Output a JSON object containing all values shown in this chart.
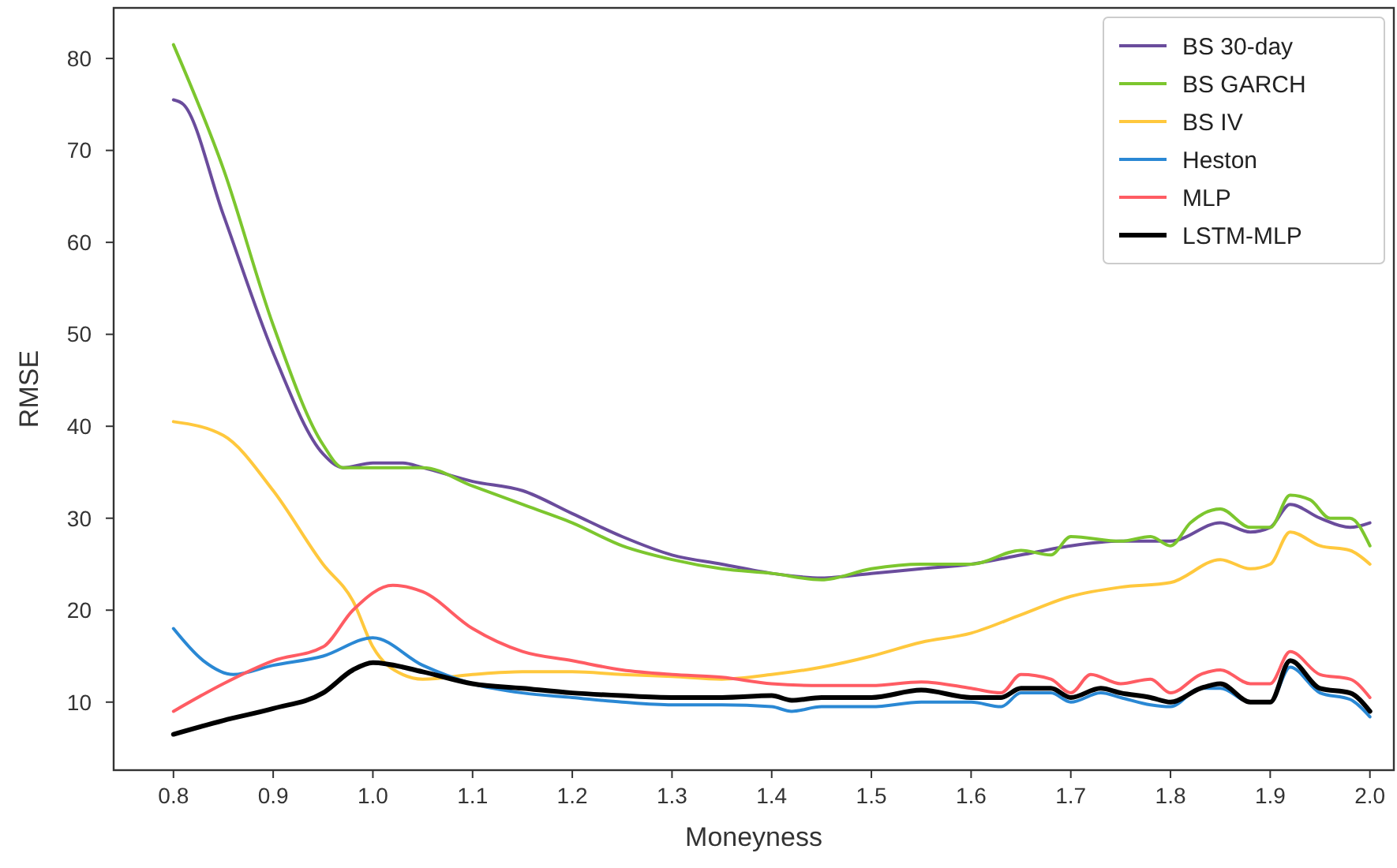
{
  "chart_data": {
    "type": "line",
    "xlabel": "Moneyness",
    "ylabel": "RMSE",
    "xlim": [
      0.74,
      2.024
    ],
    "ylim": [
      2.6,
      85.5
    ],
    "xticks": [
      0.8,
      0.9,
      {
        "value": 1,
        "label": "1.0"
      },
      1.1,
      1.2,
      1.3,
      1.4,
      1.5,
      1.6,
      1.7,
      1.8,
      1.9,
      {
        "value": 2,
        "label": "2.0"
      }
    ],
    "yticks": [
      10,
      20,
      30,
      40,
      50,
      60,
      70,
      80
    ],
    "grid": false,
    "legend": "top right",
    "marker": "none",
    "line_style": "solid",
    "series": [
      {
        "name": "BS 30-day",
        "color": "#6a4c9c",
        "x": [
          0.8,
          0.81,
          0.85,
          0.9,
          0.95,
          0.97,
          1.0,
          1.03,
          1.05,
          1.1,
          1.15,
          1.2,
          1.25,
          1.3,
          1.35,
          1.4,
          1.45,
          1.5,
          1.55,
          1.6,
          1.65,
          1.7,
          1.75,
          1.8,
          1.85,
          1.88,
          1.9,
          1.92,
          1.95,
          1.98,
          2.0
        ],
        "values": [
          75.5,
          75,
          63,
          48,
          37,
          35.5,
          36,
          36,
          35.5,
          34,
          33,
          30.5,
          28,
          26,
          25,
          24,
          23.5,
          24,
          24.5,
          25,
          26,
          27,
          27.5,
          27.5,
          29.5,
          28.5,
          29,
          31.5,
          30,
          29,
          29.5
        ]
      },
      {
        "name": "BS GARCH",
        "color": "#7cc62e",
        "x": [
          0.8,
          0.85,
          0.9,
          0.95,
          0.97,
          1.0,
          1.05,
          1.1,
          1.15,
          1.2,
          1.25,
          1.3,
          1.35,
          1.4,
          1.45,
          1.5,
          1.55,
          1.6,
          1.65,
          1.68,
          1.7,
          1.75,
          1.78,
          1.8,
          1.82,
          1.85,
          1.88,
          1.9,
          1.92,
          1.94,
          1.96,
          1.98,
          2.0
        ],
        "values": [
          81.5,
          68,
          51,
          38,
          35.5,
          35.5,
          35.5,
          33.5,
          31.5,
          29.5,
          27,
          25.5,
          24.5,
          24,
          23.3,
          24.5,
          25,
          25,
          26.5,
          26,
          28,
          27.5,
          28,
          27,
          29.5,
          31,
          29,
          29,
          32.5,
          32,
          30,
          30,
          27
        ]
      },
      {
        "name": "BS IV",
        "color": "#ffc83d",
        "x": [
          0.8,
          0.85,
          0.9,
          0.95,
          0.98,
          1.0,
          1.03,
          1.05,
          1.1,
          1.15,
          1.2,
          1.25,
          1.3,
          1.35,
          1.4,
          1.45,
          1.5,
          1.55,
          1.6,
          1.65,
          1.7,
          1.75,
          1.8,
          1.85,
          1.88,
          1.9,
          1.92,
          1.95,
          1.98,
          2.0
        ],
        "values": [
          40.5,
          39,
          33,
          25,
          21,
          16,
          13,
          12.5,
          13,
          13.3,
          13.3,
          13,
          12.8,
          12.5,
          13,
          13.8,
          15,
          16.5,
          17.5,
          19.5,
          21.5,
          22.5,
          23,
          25.5,
          24.5,
          25,
          28.5,
          27,
          26.5,
          25
        ]
      },
      {
        "name": "Heston",
        "color": "#2a88d4",
        "x": [
          0.8,
          0.83,
          0.86,
          0.9,
          0.95,
          1.0,
          1.05,
          1.1,
          1.15,
          1.2,
          1.25,
          1.3,
          1.35,
          1.4,
          1.42,
          1.45,
          1.5,
          1.55,
          1.6,
          1.63,
          1.65,
          1.68,
          1.7,
          1.73,
          1.75,
          1.78,
          1.8,
          1.83,
          1.85,
          1.88,
          1.9,
          1.92,
          1.95,
          1.98,
          2.0
        ],
        "values": [
          18,
          14.5,
          13,
          14,
          15,
          17,
          14,
          12,
          11,
          10.5,
          10,
          9.7,
          9.7,
          9.5,
          9,
          9.5,
          9.5,
          10,
          10,
          9.5,
          11,
          11,
          10,
          11,
          10.5,
          9.7,
          9.5,
          11.5,
          11.5,
          10,
          10,
          13.8,
          11,
          10.3,
          8.4
        ]
      },
      {
        "name": "MLP",
        "color": "#ff5c63",
        "x": [
          0.8,
          0.85,
          0.9,
          0.95,
          0.98,
          1.02,
          1.05,
          1.1,
          1.15,
          1.2,
          1.25,
          1.3,
          1.35,
          1.4,
          1.45,
          1.5,
          1.55,
          1.6,
          1.63,
          1.65,
          1.68,
          1.7,
          1.72,
          1.75,
          1.78,
          1.8,
          1.83,
          1.85,
          1.88,
          1.9,
          1.92,
          1.95,
          1.98,
          2.0
        ],
        "values": [
          9,
          12,
          14.5,
          16,
          20,
          22.7,
          22,
          18,
          15.5,
          14.5,
          13.5,
          13,
          12.7,
          12,
          11.8,
          11.8,
          12.2,
          11.5,
          11,
          13,
          12.5,
          11,
          13,
          12,
          12.5,
          11,
          13,
          13.5,
          12,
          12,
          15.5,
          13,
          12.5,
          10.5
        ]
      },
      {
        "name": "LSTM-MLP",
        "color": "#000000",
        "x": [
          0.8,
          0.85,
          0.9,
          0.95,
          0.98,
          1.0,
          1.05,
          1.1,
          1.15,
          1.2,
          1.25,
          1.3,
          1.35,
          1.4,
          1.42,
          1.45,
          1.5,
          1.55,
          1.6,
          1.63,
          1.65,
          1.68,
          1.7,
          1.73,
          1.75,
          1.78,
          1.8,
          1.83,
          1.85,
          1.88,
          1.9,
          1.92,
          1.95,
          1.98,
          2.0
        ],
        "values": [
          6.5,
          8,
          9.3,
          11,
          13.5,
          14.3,
          13.3,
          12,
          11.5,
          11,
          10.7,
          10.5,
          10.5,
          10.7,
          10.2,
          10.5,
          10.5,
          11.3,
          10.5,
          10.5,
          11.5,
          11.5,
          10.5,
          11.5,
          11,
          10.5,
          10,
          11.5,
          12,
          10,
          10,
          14.5,
          11.5,
          11,
          9
        ]
      }
    ]
  }
}
